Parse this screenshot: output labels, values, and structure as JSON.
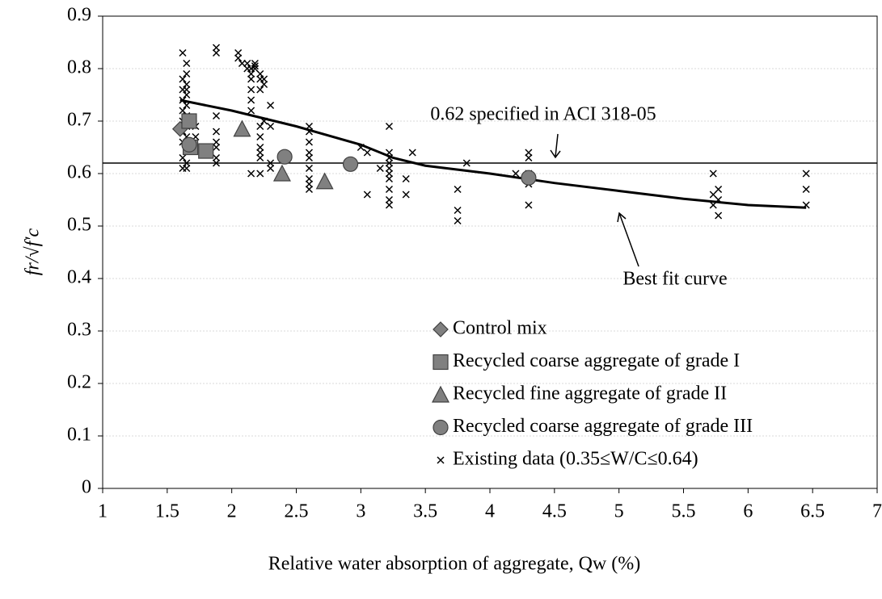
{
  "chart_data": {
    "type": "scatter",
    "xlabel": "Relative water absorption of aggregate, Qw (%)",
    "ylabel": "fr/√f′c",
    "xlim": [
      1,
      7
    ],
    "xticks": [
      1,
      1.5,
      2,
      2.5,
      3,
      3.5,
      4,
      4.5,
      5,
      5.5,
      6,
      6.5,
      7
    ],
    "ylim": [
      0,
      0.9
    ],
    "yticks": [
      0,
      0.1,
      0.2,
      0.3,
      0.4,
      0.5,
      0.6,
      0.7,
      0.8,
      0.9
    ],
    "grid": true,
    "reference_line": {
      "value": 0.62,
      "label": "0.62 specified in ACI 318-05"
    },
    "fit_curve": {
      "label": "Best fit curve",
      "color": "#000000",
      "x": [
        1.6,
        2,
        2.5,
        3,
        3.25,
        3.5,
        4,
        4.5,
        5,
        5.5,
        6,
        6.45
      ],
      "values": [
        0.74,
        0.72,
        0.69,
        0.655,
        0.63,
        0.615,
        0.6,
        0.582,
        0.567,
        0.552,
        0.54,
        0.535
      ]
    },
    "series": [
      {
        "name": "Control mix",
        "marker": "diamond",
        "color": "#808080",
        "x": [
          1.6
        ],
        "values": [
          0.685
        ]
      },
      {
        "name": "Recycled coarse aggregate of grade I",
        "marker": "square",
        "color": "#808080",
        "x": [
          1.67,
          1.68,
          1.8
        ],
        "values": [
          0.7,
          0.65,
          0.643
        ]
      },
      {
        "name": "Recycled fine aggregate of grade II",
        "marker": "triangle",
        "color": "#808080",
        "x": [
          2.08,
          2.39,
          2.72
        ],
        "values": [
          0.685,
          0.6,
          0.585
        ]
      },
      {
        "name": "Recycled coarse aggregate of grade III",
        "marker": "circle",
        "color": "#808080",
        "x": [
          1.67,
          2.41,
          2.92,
          4.3
        ],
        "values": [
          0.655,
          0.632,
          0.618,
          0.592
        ]
      },
      {
        "name": "Existing data (0.35≤W/C≤0.64)",
        "marker": "cross",
        "color": "#000000",
        "x": [
          1.62,
          1.62,
          1.62,
          1.62,
          1.62,
          1.62,
          1.62,
          1.62,
          1.62,
          1.62,
          1.65,
          1.65,
          1.65,
          1.65,
          1.65,
          1.65,
          1.65,
          1.65,
          1.65,
          1.65,
          1.65,
          1.65,
          1.72,
          1.72,
          1.88,
          1.88,
          1.88,
          1.88,
          1.88,
          1.88,
          1.88,
          1.88,
          2.05,
          2.05,
          2.08,
          2.12,
          2.12,
          2.15,
          2.15,
          2.15,
          2.15,
          2.15,
          2.15,
          2.15,
          2.18,
          2.18,
          2.18,
          2.22,
          2.22,
          2.22,
          2.22,
          2.22,
          2.22,
          2.22,
          2.22,
          2.22,
          2.25,
          2.25,
          2.25,
          2.3,
          2.3,
          2.3,
          2.3,
          2.6,
          2.6,
          2.6,
          2.6,
          2.6,
          2.6,
          2.6,
          2.6,
          2.6,
          3.0,
          3.05,
          3.05,
          3.15,
          3.22,
          3.22,
          3.22,
          3.22,
          3.22,
          3.22,
          3.22,
          3.22,
          3.22,
          3.22,
          3.35,
          3.35,
          3.4,
          3.75,
          3.75,
          3.75,
          3.82,
          4.2,
          4.3,
          4.3,
          4.3,
          4.3,
          4.3,
          5.73,
          5.73,
          5.73,
          5.77,
          5.77,
          5.77,
          6.45,
          6.45,
          6.45
        ],
        "values": [
          0.83,
          0.78,
          0.76,
          0.74,
          0.72,
          0.7,
          0.68,
          0.66,
          0.63,
          0.61,
          0.81,
          0.79,
          0.77,
          0.76,
          0.75,
          0.73,
          0.71,
          0.69,
          0.67,
          0.65,
          0.62,
          0.61,
          0.69,
          0.67,
          0.84,
          0.83,
          0.71,
          0.68,
          0.66,
          0.65,
          0.63,
          0.62,
          0.83,
          0.82,
          0.81,
          0.8,
          0.81,
          0.8,
          0.79,
          0.78,
          0.76,
          0.74,
          0.72,
          0.6,
          0.81,
          0.8,
          0.805,
          0.79,
          0.78,
          0.76,
          0.69,
          0.67,
          0.65,
          0.64,
          0.63,
          0.6,
          0.78,
          0.77,
          0.7,
          0.73,
          0.69,
          0.62,
          0.61,
          0.69,
          0.68,
          0.66,
          0.64,
          0.63,
          0.61,
          0.59,
          0.58,
          0.57,
          0.65,
          0.64,
          0.56,
          0.61,
          0.69,
          0.64,
          0.63,
          0.62,
          0.61,
          0.6,
          0.59,
          0.57,
          0.55,
          0.54,
          0.59,
          0.56,
          0.64,
          0.57,
          0.53,
          0.51,
          0.62,
          0.6,
          0.64,
          0.63,
          0.6,
          0.58,
          0.54,
          0.6,
          0.56,
          0.54,
          0.57,
          0.55,
          0.52,
          0.6,
          0.57,
          0.54
        ]
      }
    ]
  }
}
